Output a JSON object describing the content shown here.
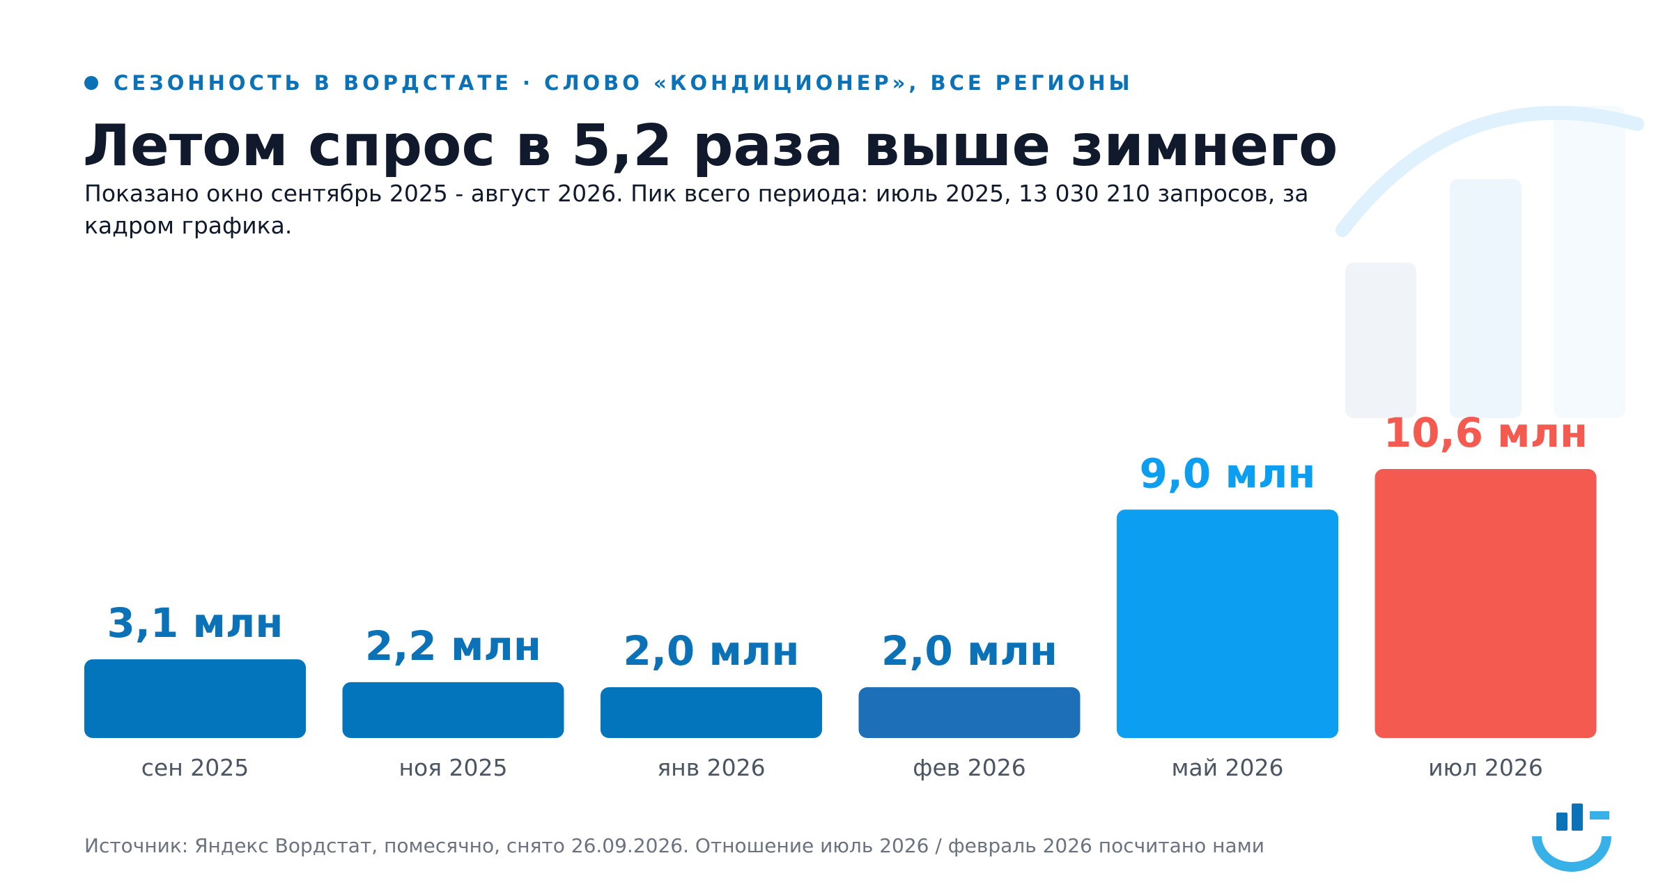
{
  "header": {
    "kicker": "СЕЗОННОСТЬ В ВОРДСТАТЕ · СЛОВО «КОНДИЦИОНЕР», ВСЕ РЕГИОНЫ",
    "title": "Летом спрос в 5,2 раза выше зимнего",
    "subtitle": "Показано окно сентябрь 2025 - август 2026. Пик всего периода: июль 2025, 13 030 210 запросов, за кадром графика."
  },
  "footer": {
    "source": "Источник: Яндекс Вордстат, помесячно, снято 26.09.2026. Отношение июль 2026 / февраль 2026 посчитано нами"
  },
  "colors": {
    "winter_dark": "#0275bc",
    "winter_mid": "#1d6fb7",
    "summer_blue": "#0c9ef0",
    "peak_red": "#f45a50",
    "accent": "#0b72b8"
  },
  "decoration": {
    "top_right": "growing-bars-icon",
    "bottom_right": "brand-logo-icon"
  },
  "chart_data": {
    "type": "bar",
    "categories": [
      "сен 2025",
      "ноя 2025",
      "янв 2026",
      "фев 2026",
      "май 2026",
      "июл 2026"
    ],
    "values": [
      3.1,
      2.2,
      2.0,
      2.0,
      9.0,
      10.6
    ],
    "value_labels": [
      "3,1 млн",
      "2,2 млн",
      "2,0 млн",
      "2,0 млн",
      "9,0 млн",
      "10,6 млн"
    ],
    "unit": "млн",
    "bar_colors": [
      "#0275bc",
      "#0275bc",
      "#0275bc",
      "#1d6fb7",
      "#0c9ef0",
      "#f45a50"
    ],
    "label_colors": [
      "#0b72b8",
      "#0b72b8",
      "#0b72b8",
      "#0b72b8",
      "#0c9ef0",
      "#f45a50"
    ],
    "xlabel": "",
    "ylabel": "",
    "ylim": [
      0,
      10.6
    ],
    "grid": false,
    "legend": "none"
  }
}
